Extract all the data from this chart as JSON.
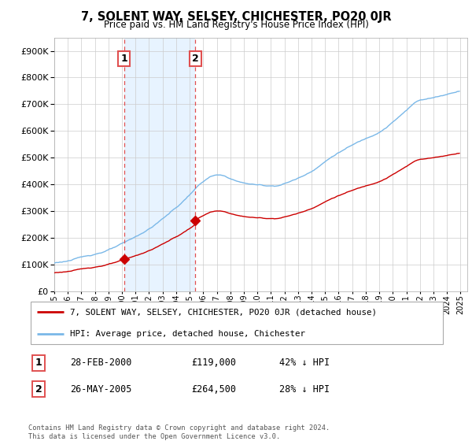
{
  "title": "7, SOLENT WAY, SELSEY, CHICHESTER, PO20 0JR",
  "subtitle": "Price paid vs. HM Land Registry's House Price Index (HPI)",
  "legend_line1": "7, SOLENT WAY, SELSEY, CHICHESTER, PO20 0JR (detached house)",
  "legend_line2": "HPI: Average price, detached house, Chichester",
  "sale1_date": "28-FEB-2000",
  "sale1_price": "£119,000",
  "sale1_hpi": "42% ↓ HPI",
  "sale2_date": "26-MAY-2005",
  "sale2_price": "£264,500",
  "sale2_hpi": "28% ↓ HPI",
  "footnote": "Contains HM Land Registry data © Crown copyright and database right 2024.\nThis data is licensed under the Open Government Licence v3.0.",
  "property_color": "#cc0000",
  "hpi_color": "#7ab8e8",
  "vline_color": "#e05050",
  "shade_color": "#ddeeff",
  "ylim": [
    0,
    950000
  ],
  "yticks": [
    0,
    100000,
    200000,
    300000,
    400000,
    500000,
    600000,
    700000,
    800000,
    900000
  ],
  "sale1_year": 2000.15,
  "sale2_year": 2005.42,
  "sale1_price_val": 119000,
  "sale2_price_val": 264500,
  "xmin": 1995,
  "xmax": 2025.5
}
